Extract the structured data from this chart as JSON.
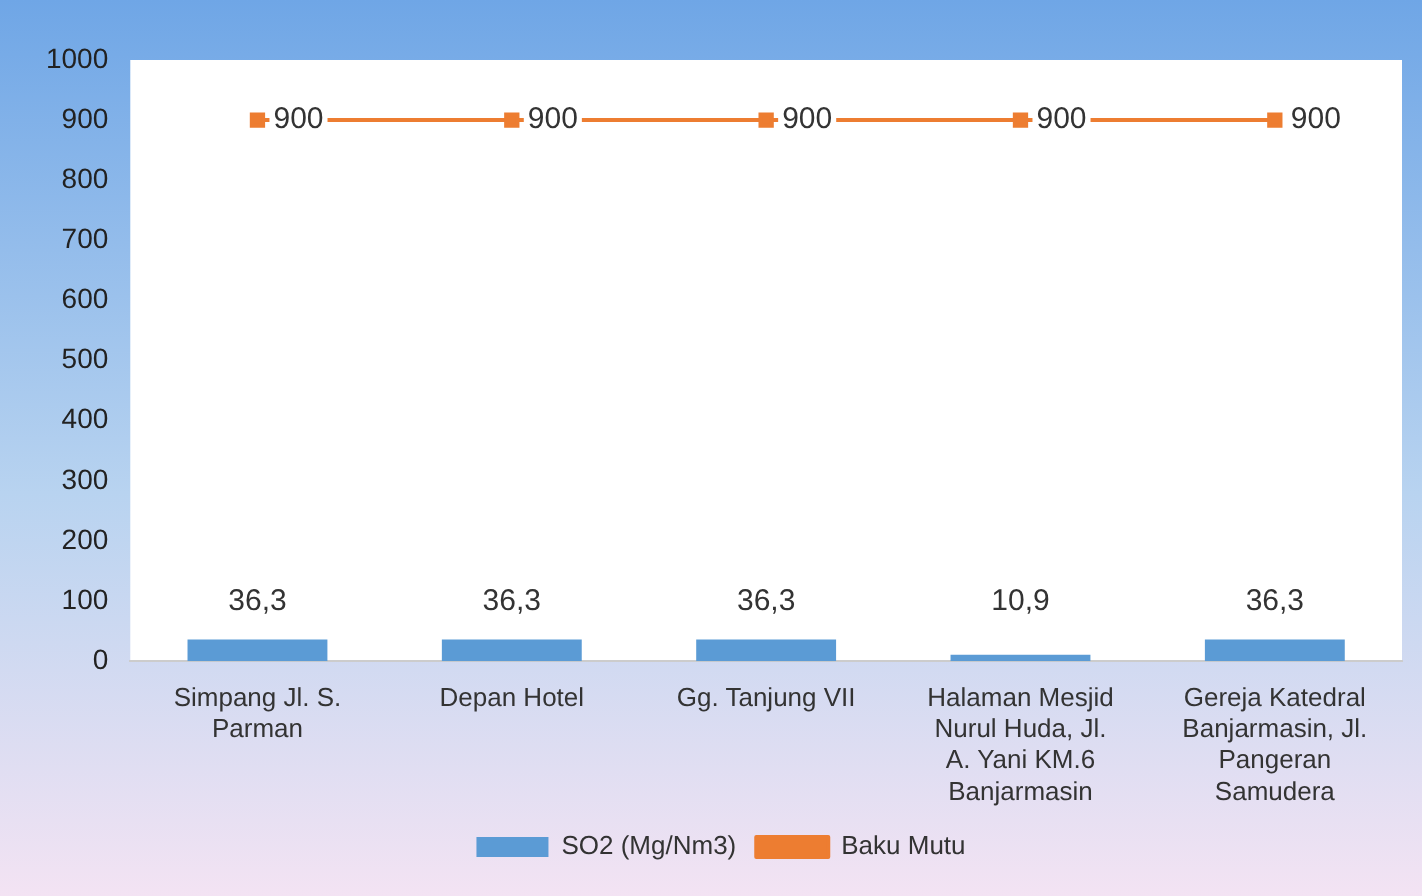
{
  "chart_data": {
    "type": "bar",
    "categories": [
      "Simpang Jl. S. Parman",
      "Depan Hotel",
      "Gg. Tanjung VII",
      "Halaman Mesjid Nurul Huda, Jl. A. Yani KM.6 Banjarmasin",
      "Gereja Katedral Banjarmasin, Jl. Pangeran Samudera"
    ],
    "series": [
      {
        "name": "SO2 (Mg/Nm3)",
        "color": "#5b9bd5",
        "values": [
          36.3,
          36.3,
          36.3,
          10.9,
          36.3
        ],
        "value_labels": [
          "36,3",
          "36,3",
          "36,3",
          "10,9",
          "36,3"
        ]
      },
      {
        "name": "Baku Mutu",
        "type": "line",
        "color": "#ed7d31",
        "marker": "square",
        "values": [
          900,
          900,
          900,
          900,
          900
        ],
        "value_labels": [
          "900",
          "900",
          "900",
          "900",
          "900"
        ]
      }
    ],
    "ylim": [
      0,
      1000
    ],
    "yticks": [
      0,
      100,
      200,
      300,
      400,
      500,
      600,
      700,
      800,
      900,
      1000
    ],
    "grid": false,
    "legend": "bottom"
  }
}
